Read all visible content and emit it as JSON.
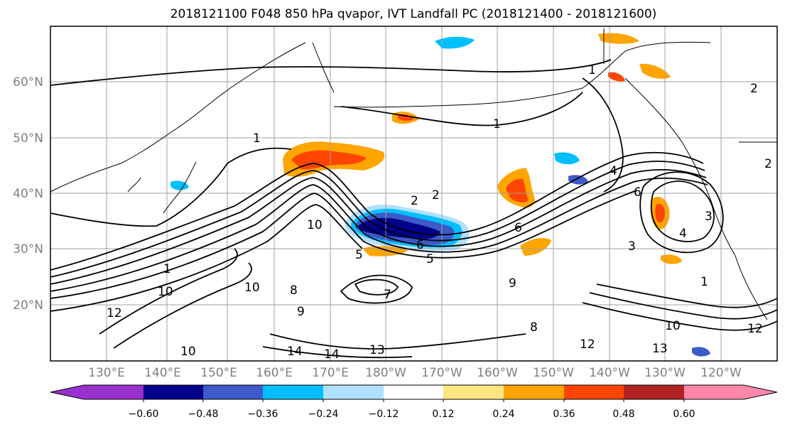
{
  "title": "2018121100 F048 850 hPa qvapor, IVT Landfall PC (2018121400 - 2018121600)",
  "map": {
    "lon_labels": [
      "130°E",
      "140°E",
      "150°E",
      "160°E",
      "170°E",
      "180°W",
      "170°W",
      "160°W",
      "150°W",
      "140°W",
      "130°W",
      "120°W"
    ],
    "lat_labels": [
      "60°N",
      "50°N",
      "40°N",
      "30°N",
      "20°N"
    ],
    "contour_labels": [
      "2",
      "2",
      "2",
      "1",
      "1",
      "6",
      "6",
      "4",
      "4",
      "5",
      "5",
      "10",
      "10",
      "10",
      "10",
      "8",
      "8",
      "14",
      "14",
      "13",
      "13",
      "12",
      "12",
      "7",
      "9",
      "9",
      "3",
      "3",
      "1",
      "2",
      "1",
      "6",
      "10",
      "12",
      "1"
    ],
    "shading_colors": {
      "orange": "#ffa500",
      "red_orange": "#ff4500",
      "yellow": "#ffe680",
      "blue": "#3c5ac8",
      "dark_blue": "#00008b",
      "cyan": "#00bfff",
      "light_blue": "#b0e0ff"
    }
  },
  "colorbar": {
    "tick_labels": [
      "−0.60",
      "−0.48",
      "−0.36",
      "−0.24",
      "−0.12",
      "0.12",
      "0.24",
      "0.36",
      "0.48",
      "0.60"
    ],
    "colors": [
      "#9932cc",
      "#00008b",
      "#3c5ac8",
      "#00bfff",
      "#b0e0ff",
      "#ffffff",
      "#ffe680",
      "#ffa500",
      "#ff4500",
      "#b22222",
      "#ff88aa"
    ]
  }
}
